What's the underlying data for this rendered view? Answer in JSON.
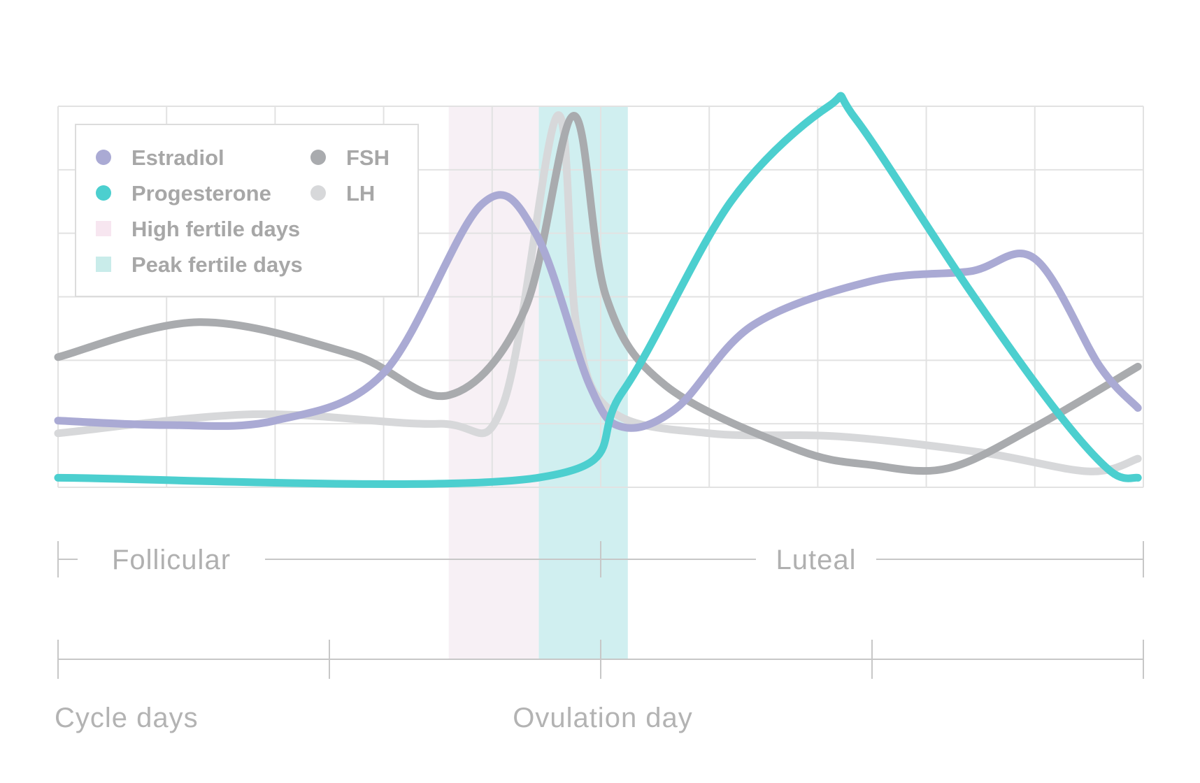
{
  "chart_data": {
    "type": "line",
    "title": "",
    "x_range": [
      0,
      10
    ],
    "y_range": [
      0,
      6
    ],
    "grid": true,
    "legend_position": "top-left",
    "legend": [
      {
        "label": "Estradiol",
        "marker": "circle",
        "color": "#aaaad4"
      },
      {
        "label": "FSH",
        "marker": "circle",
        "color": "#a9abae"
      },
      {
        "label": "Progesterone",
        "marker": "circle",
        "color": "#4ccfcf"
      },
      {
        "label": "LH",
        "marker": "circle",
        "color": "#d7d8da"
      },
      {
        "label": "High fertile days",
        "marker": "square",
        "color": "#f7e6f0"
      },
      {
        "label": "Peak fertile days",
        "marker": "square",
        "color": "#c9ecea"
      }
    ],
    "bands": [
      {
        "name": "High fertile days",
        "x_start": 3.6,
        "x_end": 4.43,
        "color": "#f7f0f5"
      },
      {
        "name": "Peak fertile days",
        "x_start": 4.43,
        "x_end": 5.25,
        "color": "#d0eff0"
      }
    ],
    "series": [
      {
        "name": "Estradiol",
        "color": "#aaaad4",
        "points": [
          [
            0,
            1.05
          ],
          [
            1,
            0.98
          ],
          [
            2,
            1.05
          ],
          [
            3,
            1.8
          ],
          [
            3.9,
            4.45
          ],
          [
            4.4,
            4.0
          ],
          [
            4.9,
            1.6
          ],
          [
            5.2,
            0.95
          ],
          [
            5.7,
            1.25
          ],
          [
            6.4,
            2.55
          ],
          [
            7.5,
            3.25
          ],
          [
            8.4,
            3.4
          ],
          [
            9,
            3.6
          ],
          [
            9.6,
            1.9
          ],
          [
            9.95,
            1.25
          ]
        ]
      },
      {
        "name": "FSH",
        "color": "#a9abae",
        "points": [
          [
            0,
            2.05
          ],
          [
            1.3,
            2.6
          ],
          [
            2.7,
            2.1
          ],
          [
            3.6,
            1.45
          ],
          [
            4.3,
            2.8
          ],
          [
            4.75,
            5.85
          ],
          [
            5.05,
            3.0
          ],
          [
            5.6,
            1.6
          ],
          [
            6.8,
            0.6
          ],
          [
            7.5,
            0.35
          ],
          [
            8.2,
            0.3
          ],
          [
            9,
            0.95
          ],
          [
            9.95,
            1.9
          ]
        ]
      },
      {
        "name": "Progesterone",
        "color": "#4ccfcf",
        "points": [
          [
            0,
            0.15
          ],
          [
            4.42,
            0.15
          ],
          [
            5.2,
            1.5
          ],
          [
            6.2,
            4.5
          ],
          [
            7.1,
            6.0
          ],
          [
            7.35,
            5.8
          ],
          [
            8.4,
            3.1
          ],
          [
            9.2,
            1.2
          ],
          [
            9.7,
            0.25
          ],
          [
            9.95,
            0.15
          ]
        ]
      },
      {
        "name": "LH",
        "color": "#d7d8da",
        "points": [
          [
            0,
            0.85
          ],
          [
            1.8,
            1.15
          ],
          [
            3.5,
            1.0
          ],
          [
            4.1,
            1.3
          ],
          [
            4.6,
            5.85
          ],
          [
            4.78,
            2.5
          ],
          [
            5.1,
            1.2
          ],
          [
            6,
            0.85
          ],
          [
            7.2,
            0.8
          ],
          [
            8.5,
            0.55
          ],
          [
            9.5,
            0.25
          ],
          [
            9.95,
            0.45
          ]
        ]
      }
    ],
    "phases": [
      {
        "label": "Follicular",
        "x_start": 0,
        "x_end": 5
      },
      {
        "label": "Luteal",
        "x_start": 5,
        "x_end": 10
      }
    ],
    "cycle_axis": {
      "ticks": [
        0,
        2.5,
        5,
        7.5,
        10
      ]
    },
    "axis_labels": {
      "cycle": "Cycle days",
      "ovulation": "Ovulation day"
    }
  }
}
